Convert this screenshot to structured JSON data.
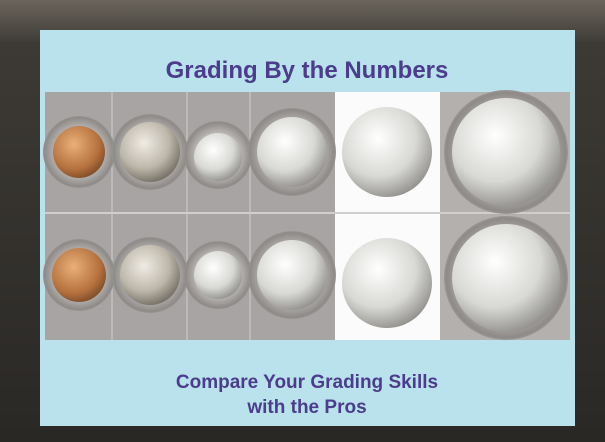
{
  "slide": {
    "title": "Grading By the Numbers",
    "subtitle_lines": [
      "Compare Your Grading Skills",
      "with the Pros"
    ]
  }
}
